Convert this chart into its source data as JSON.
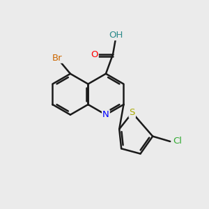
{
  "background_color": "#ebebeb",
  "bond_color": "#1a1a1a",
  "bond_width": 1.8,
  "atom_colors": {
    "N": "#0000FF",
    "O": "#FF0000",
    "S": "#aaaa00",
    "Cl": "#33aa33",
    "Br": "#cc6600",
    "H": "#2e8b8b",
    "C": "#1a1a1a"
  },
  "font_size": 9.5,
  "fig_bg": "#ebebeb"
}
